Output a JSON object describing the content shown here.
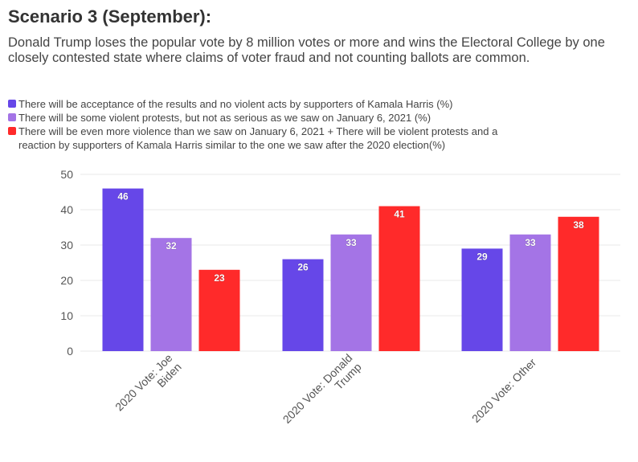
{
  "header": {
    "title": "Scenario 3 (September):",
    "subtitle": "Donald Trump loses the popular vote by 8 million votes or more and wins the Electoral College by one closely contested state where claims of voter fraud and not counting ballots are common."
  },
  "colors": {
    "series1": "#6647E8",
    "series2": "#A474E6",
    "series3": "#FF2A2A",
    "grid": "#e8e8e8",
    "axis_text": "#555555"
  },
  "chart_data": {
    "type": "bar",
    "categories": [
      "2020 Vote: Joe Biden",
      "2020 Vote: Donald Trump",
      "2020 Vote: Other"
    ],
    "category_lines": [
      [
        "2020 Vote: Joe",
        "Biden"
      ],
      [
        "2020 Vote: Donald",
        "Trump"
      ],
      [
        "2020 Vote: Other"
      ]
    ],
    "series": [
      {
        "name": "There will be acceptance of the results and no violent acts by supporters of Kamala Harris (%)",
        "values": [
          46,
          26,
          29
        ]
      },
      {
        "name": "There will be some violent protests, but not as serious as we saw on January 6, 2021 (%)",
        "values": [
          32,
          33,
          33
        ]
      },
      {
        "name": "There will be even more violence than we saw on January 6, 2021 + There will be violent protests and a reaction by supporters of Kamala Harris similar to the one we saw after the 2020 election(%)",
        "values": [
          23,
          41,
          38
        ]
      }
    ],
    "legend_lines": [
      [
        "There will be acceptance of the results and no violent acts by supporters of Kamala Harris (%)"
      ],
      [
        "There will be some violent protests, but not as serious as we saw on January 6, 2021 (%)"
      ],
      [
        "There will be even more violence than we saw on January 6, 2021 + There will be violent protests and a",
        "reaction by supporters of Kamala Harris similar to the one we saw after the 2020 election(%)"
      ]
    ],
    "ylim": [
      0,
      50
    ],
    "yticks": [
      0,
      10,
      20,
      30,
      40,
      50
    ],
    "grid": true,
    "legend_position": "top-left"
  }
}
